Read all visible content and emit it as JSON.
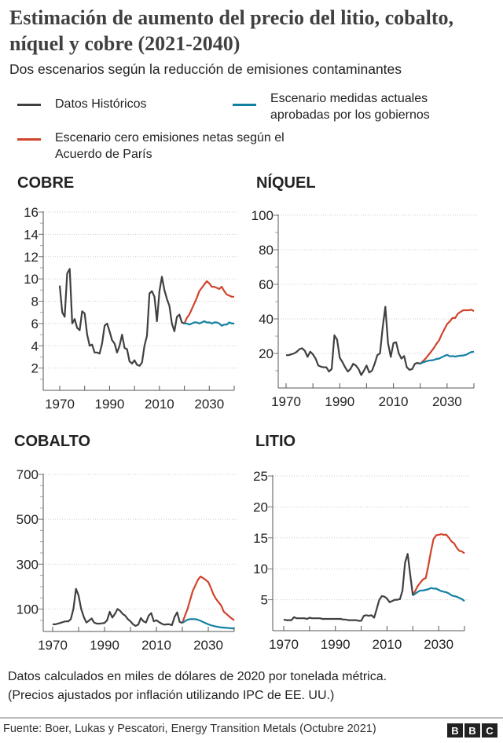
{
  "title": "Estimación de aumento del precio del litio, cobalto, níquel y cobre (2021-2040)",
  "subtitle": "Dos escenarios según la reducción de emisiones contaminantes",
  "legend": [
    {
      "label": "Datos Históricos",
      "color": "#404040"
    },
    {
      "label": "Escenario medidas actuales aprobadas por los gobiernos",
      "color": "#1380a1"
    },
    {
      "label": "Escenario cero emisiones netas según el Acuerdo de París",
      "color": "#d1432b"
    }
  ],
  "note_line1": "Datos calculados en miles de dólares de 2020 por tonelada métrica.",
  "note_line2": "(Precios ajustados por inflación utilizando IPC de EE. UU.)",
  "source": "Fuente: Boer, Lukas y Pescatori, Energy Transition Metals (Octubre 2021)",
  "logo": [
    "B",
    "B",
    "C"
  ],
  "chart_data": [
    {
      "type": "line",
      "title": "COBRE",
      "xlim": [
        1970,
        2040
      ],
      "ylim": [
        0,
        16
      ],
      "xticks": [
        1970,
        1990,
        2010,
        2030
      ],
      "yticks": [
        2,
        4,
        6,
        8,
        10,
        12,
        14,
        16
      ],
      "grid": true,
      "historical": {
        "x_start": 1970,
        "values": [
          9.4,
          7.0,
          6.6,
          10.5,
          10.9,
          6.0,
          6.4,
          5.6,
          5.4,
          7.1,
          6.9,
          5.0,
          4.0,
          4.1,
          3.4,
          3.4,
          3.3,
          4.2,
          5.8,
          6.0,
          5.3,
          4.5,
          4.2,
          3.4,
          4.0,
          5.0,
          3.8,
          3.7,
          2.6,
          2.4,
          2.7,
          2.3,
          2.2,
          2.5,
          4.0,
          4.9,
          8.7,
          8.9,
          8.4,
          6.2,
          8.9,
          10.2,
          9.0,
          8.2,
          7.6,
          6.0,
          5.3,
          6.6,
          6.8,
          6.1,
          6.0
        ]
      },
      "current_measures": {
        "x_start": 2020,
        "values": [
          6.0,
          6.0,
          5.9,
          6.0,
          6.1,
          6.1,
          6.0,
          6.1,
          6.2,
          6.1,
          6.1,
          6.0,
          6.1,
          6.1,
          6.0,
          5.8,
          5.9,
          5.9,
          6.1,
          6.0,
          6.0
        ]
      },
      "net_zero": {
        "x_start": 2020,
        "values": [
          6.0,
          6.5,
          6.8,
          7.3,
          7.8,
          8.3,
          8.9,
          9.2,
          9.5,
          9.8,
          9.6,
          9.3,
          9.3,
          9.2,
          9.1,
          9.3,
          8.9,
          8.6,
          8.5,
          8.4,
          8.4
        ]
      }
    },
    {
      "type": "line",
      "title": "NÍQUEL",
      "xlim": [
        1970,
        2040
      ],
      "ylim": [
        0,
        100
      ],
      "xticks": [
        1970,
        1990,
        2010,
        2030
      ],
      "yticks": [
        20,
        40,
        60,
        80,
        100
      ],
      "grid": true,
      "historical": {
        "x_start": 1970,
        "values": [
          19,
          19,
          19.5,
          20,
          21,
          22.5,
          23,
          21.5,
          18,
          21,
          19.5,
          17,
          13,
          12.3,
          12,
          12,
          9.5,
          11,
          30.5,
          28,
          17.5,
          15,
          12,
          9.5,
          11,
          14,
          13,
          11,
          7.5,
          10,
          13,
          9,
          10,
          14,
          19,
          20,
          35,
          47,
          26,
          18,
          26,
          26.5,
          20,
          17,
          18.5,
          12,
          10.5,
          11,
          14,
          14.5,
          14
        ]
      },
      "current_measures": {
        "x_start": 2020,
        "values": [
          14,
          14.8,
          15.3,
          15.8,
          16,
          16.2,
          16.8,
          17,
          17.8,
          18.5,
          19.2,
          18.3,
          18.5,
          18.2,
          18.5,
          18.7,
          18.8,
          19.2,
          20,
          20.8,
          21
        ]
      },
      "net_zero": {
        "x_start": 2020,
        "values": [
          14,
          15.5,
          17,
          19,
          21,
          23,
          25.5,
          27.5,
          31,
          34,
          37,
          38.5,
          40.5,
          40.5,
          43,
          44,
          45,
          45,
          45,
          45.3,
          44.5
        ]
      }
    },
    {
      "type": "line",
      "title": "COBALTO",
      "xlim": [
        1970,
        2040
      ],
      "ylim": [
        0,
        700
      ],
      "xticks": [
        1970,
        1990,
        2010,
        2030
      ],
      "yticks": [
        100,
        300,
        500,
        700
      ],
      "grid": true,
      "historical": {
        "x_start": 1970,
        "values": [
          32,
          32,
          35,
          38,
          42,
          45,
          45,
          55,
          100,
          190,
          160,
          100,
          65,
          40,
          48,
          58,
          40,
          35,
          35,
          36,
          38,
          50,
          88,
          62,
          78,
          100,
          92,
          78,
          70,
          55,
          45,
          32,
          25,
          30,
          60,
          45,
          40,
          70,
          82,
          45,
          50,
          42,
          35,
          30,
          32,
          32,
          28,
          65,
          85,
          42,
          38
        ]
      },
      "current_measures": {
        "x_start": 2020,
        "values": [
          38,
          45,
          52,
          55,
          55,
          55,
          52,
          48,
          42,
          37,
          32,
          28,
          25,
          22,
          20,
          18,
          17,
          16,
          15,
          14,
          13
        ]
      },
      "net_zero": {
        "x_start": 2020,
        "values": [
          38,
          70,
          100,
          140,
          180,
          205,
          230,
          245,
          238,
          230,
          220,
          195,
          165,
          145,
          130,
          115,
          88,
          78,
          68,
          58,
          50
        ]
      }
    },
    {
      "type": "line",
      "title": "LITIO",
      "xlim": [
        1970,
        2040
      ],
      "ylim": [
        0,
        25
      ],
      "xticks": [
        1970,
        1990,
        2010,
        2030
      ],
      "yticks": [
        5,
        10,
        15,
        20,
        25
      ],
      "grid": true,
      "historical": {
        "x_start": 1970,
        "values": [
          1.8,
          1.7,
          1.7,
          1.7,
          2.2,
          2.0,
          2.0,
          2.0,
          2.0,
          1.9,
          2.1,
          2.0,
          2.0,
          2.0,
          2.0,
          1.9,
          1.9,
          1.9,
          1.9,
          1.9,
          1.9,
          1.9,
          1.9,
          1.8,
          1.8,
          1.7,
          1.7,
          1.7,
          1.7,
          1.6,
          1.6,
          2.4,
          2.5,
          2.4,
          2.5,
          2.1,
          3.5,
          5.0,
          5.6,
          5.5,
          5.2,
          4.6,
          4.8,
          5.0,
          5.0,
          5.1,
          6.5,
          11,
          12.4,
          9,
          5.7
        ]
      },
      "current_measures": {
        "x_start": 2020,
        "values": [
          5.7,
          6.0,
          6.3,
          6.5,
          6.5,
          6.6,
          6.7,
          6.9,
          6.8,
          6.8,
          6.6,
          6.4,
          6.3,
          6.2,
          6.0,
          5.7,
          5.6,
          5.5,
          5.3,
          5.1,
          4.8
        ]
      },
      "net_zero": {
        "x_start": 2020,
        "values": [
          5.7,
          6.5,
          7.3,
          7.8,
          8.3,
          8.5,
          10.5,
          12.8,
          14.8,
          15.4,
          15.5,
          15.6,
          15.5,
          15.5,
          15.0,
          14.4,
          14.1,
          13.4,
          12.9,
          12.8,
          12.5
        ]
      }
    }
  ]
}
